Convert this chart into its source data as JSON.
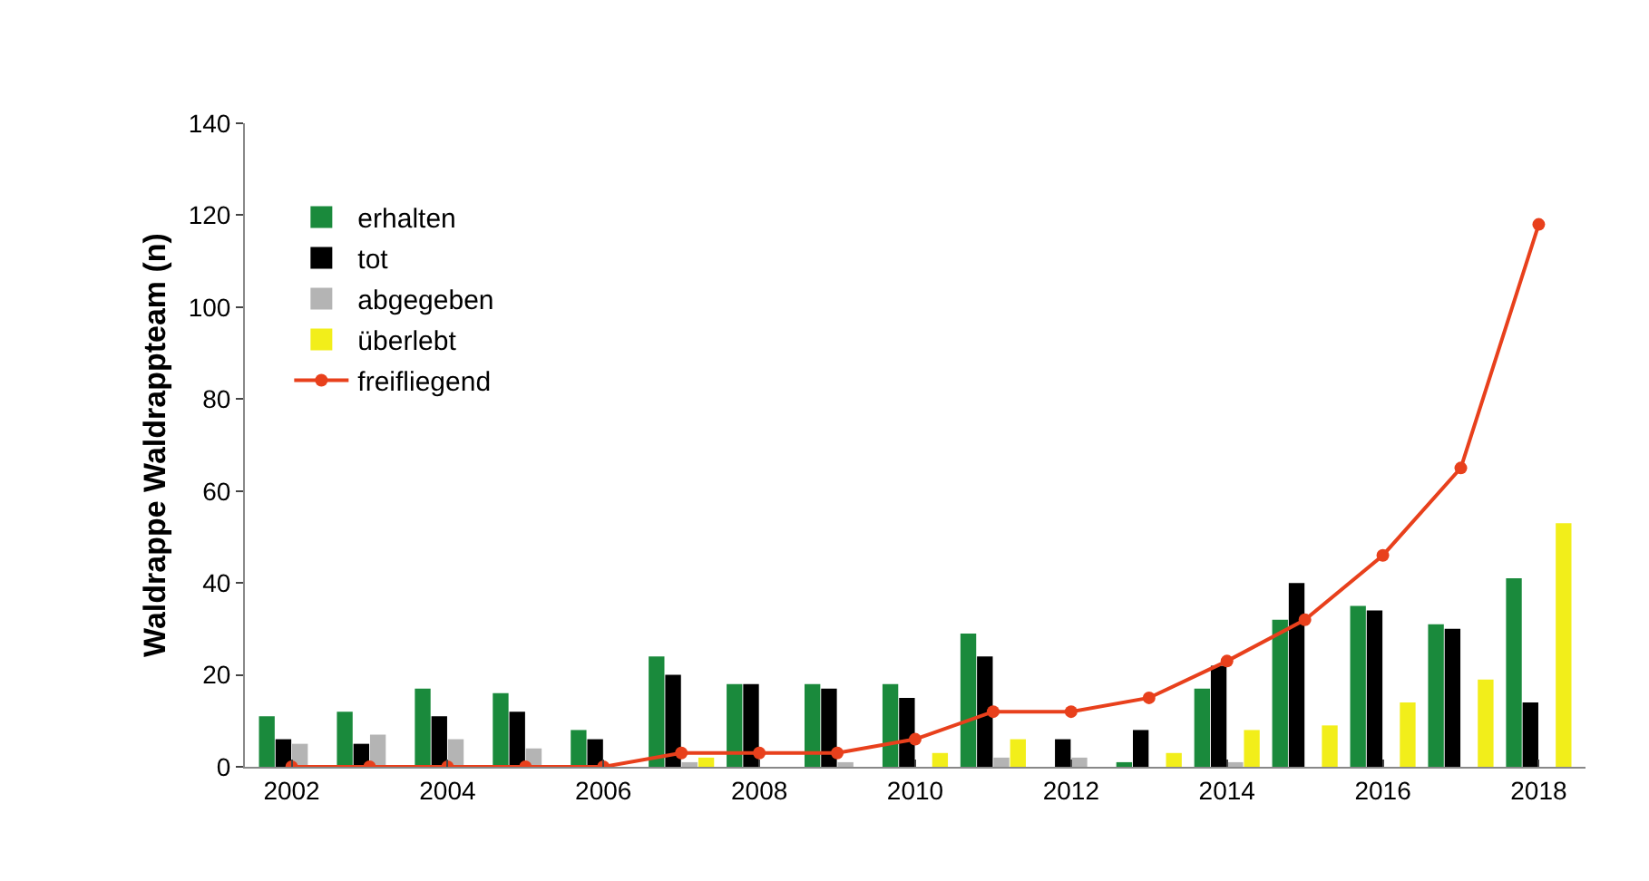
{
  "chart_data": {
    "type": "bar",
    "ylabel": "Waldrappe Waldrappteam (n)",
    "categories": [
      "2002",
      null,
      "2004",
      null,
      "2006",
      null,
      "2008",
      null,
      "2010",
      null,
      "2012",
      null,
      "2014",
      null,
      "2016",
      null,
      "2018"
    ],
    "series": [
      {
        "name": "erhalten",
        "color": "#1a8a3c",
        "values": [
          11,
          12,
          17,
          16,
          8,
          24,
          18,
          18,
          18,
          29,
          0,
          1,
          17,
          32,
          35,
          31,
          41
        ]
      },
      {
        "name": "tot",
        "color": "#000000",
        "values": [
          6,
          5,
          11,
          12,
          6,
          20,
          18,
          17,
          15,
          24,
          6,
          8,
          22,
          40,
          34,
          30,
          14
        ]
      },
      {
        "name": "abgegeben",
        "color": "#b4b4b4",
        "values": [
          5,
          7,
          6,
          4,
          null,
          1,
          0,
          1,
          0,
          2,
          2,
          0,
          1,
          0,
          0,
          0,
          0
        ]
      },
      {
        "name": "überlebt",
        "color": "#f2ee1a",
        "values": [
          0,
          0,
          0,
          0,
          0,
          2,
          0,
          0,
          3,
          6,
          0,
          3,
          8,
          9,
          14,
          19,
          53
        ]
      },
      {
        "name": "freifliegend",
        "type": "line",
        "color": "#e8401c",
        "marker": "circle",
        "values": [
          0,
          0,
          0,
          0,
          0,
          3,
          3,
          3,
          6,
          12,
          12,
          15,
          23,
          32,
          46,
          65,
          118
        ]
      }
    ],
    "ylim": [
      0,
      140
    ],
    "yticks": [
      0,
      20,
      40,
      60,
      80,
      100,
      120,
      140
    ],
    "grid": false,
    "legend": "top left"
  }
}
